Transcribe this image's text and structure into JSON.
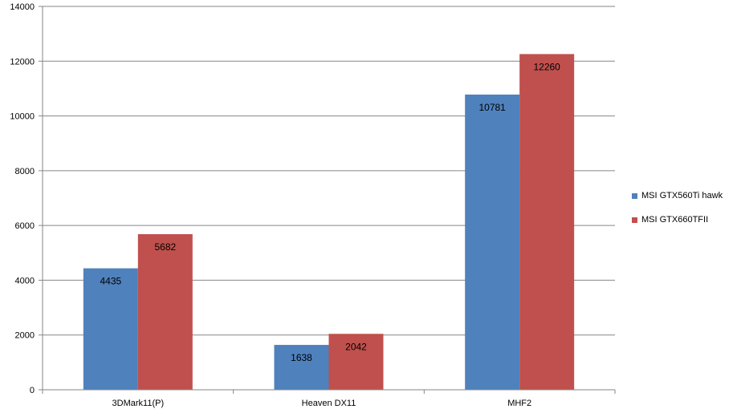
{
  "chart_data": {
    "type": "bar",
    "categories": [
      "3DMark11(P)",
      "Heaven DX11",
      "MHF2"
    ],
    "series": [
      {
        "name": "MSI GTX560Ti hawk",
        "values": [
          4435,
          1638,
          10781
        ],
        "color": "#4f81bd"
      },
      {
        "name": "MSI GTX660TFII",
        "values": [
          5682,
          2042,
          12260
        ],
        "color": "#c0504d"
      }
    ],
    "ylim": [
      0,
      14000
    ],
    "yticks": [
      "0",
      "2000",
      "4000",
      "6000",
      "8000",
      "10000",
      "12000",
      "14000"
    ],
    "grid": true,
    "legend_position": "right",
    "colors": {
      "gridline": "#868686",
      "axis": "#868686"
    }
  }
}
